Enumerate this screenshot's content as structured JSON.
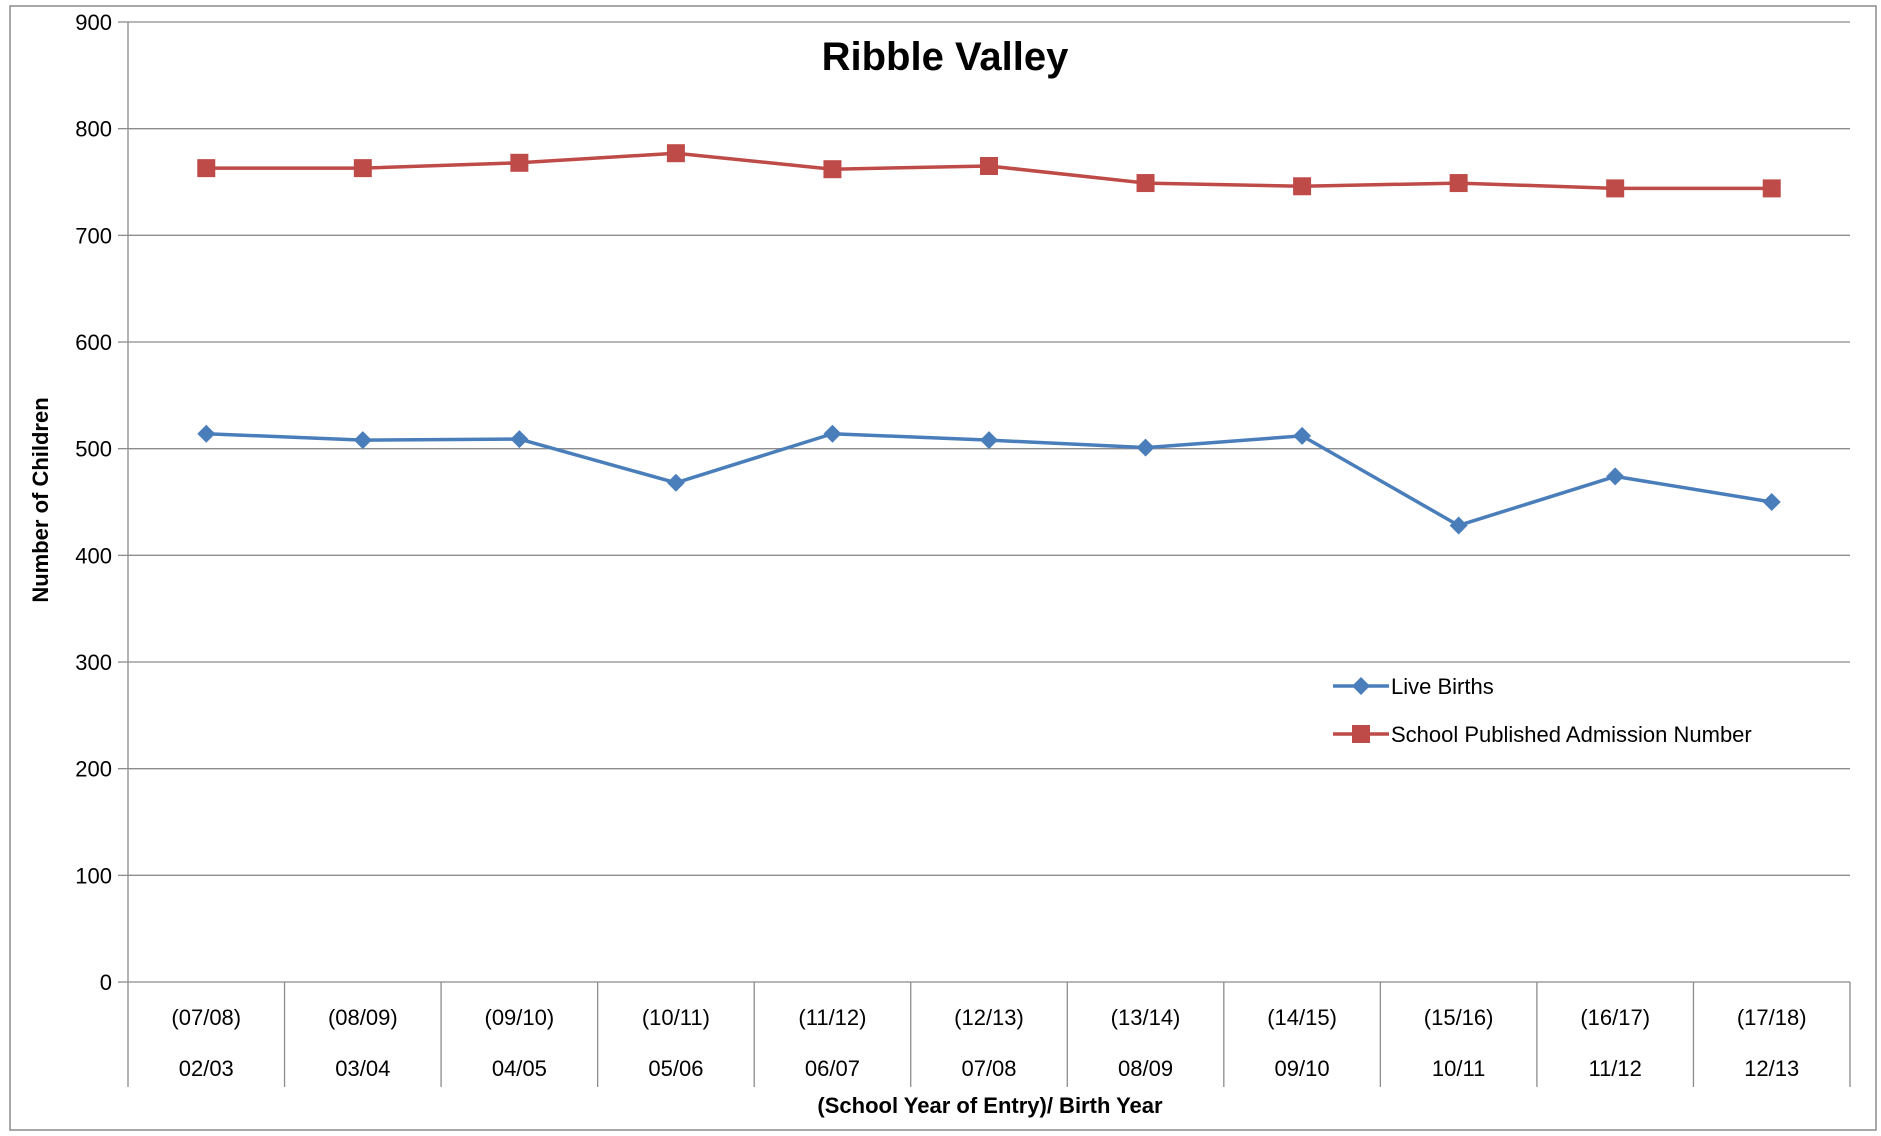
{
  "chart_data": {
    "type": "line",
    "title": "Ribble Valley",
    "xlabel": "(School Year of Entry)/ Birth Year",
    "ylabel": "Number of Children",
    "ylim": [
      0,
      900
    ],
    "yticks": [
      "0",
      "100",
      "200",
      "300",
      "400",
      "500",
      "600",
      "700",
      "800",
      "900"
    ],
    "grid": true,
    "legend_position": "right",
    "categories": [
      {
        "entry": "(07/08)",
        "birth": "02/03"
      },
      {
        "entry": "(08/09)",
        "birth": "03/04"
      },
      {
        "entry": "(09/10)",
        "birth": "04/05"
      },
      {
        "entry": "(10/11)",
        "birth": "05/06"
      },
      {
        "entry": "(11/12)",
        "birth": "06/07"
      },
      {
        "entry": "(12/13)",
        "birth": "07/08"
      },
      {
        "entry": "(13/14)",
        "birth": "08/09"
      },
      {
        "entry": "(14/15)",
        "birth": "09/10"
      },
      {
        "entry": "(15/16)",
        "birth": "10/11"
      },
      {
        "entry": "(16/17)",
        "birth": "11/12"
      },
      {
        "entry": "(17/18)",
        "birth": "12/13"
      }
    ],
    "series": [
      {
        "name": "Live Births",
        "color": "#4A7EBB",
        "marker": "diamond",
        "values": [
          514,
          508,
          509,
          468,
          514,
          508,
          501,
          512,
          428,
          474,
          450
        ]
      },
      {
        "name": "School Published Admission Number",
        "color": "#BE4B48",
        "marker": "square",
        "values": [
          763,
          763,
          768,
          777,
          762,
          765,
          749,
          746,
          749,
          744,
          744
        ]
      }
    ]
  }
}
